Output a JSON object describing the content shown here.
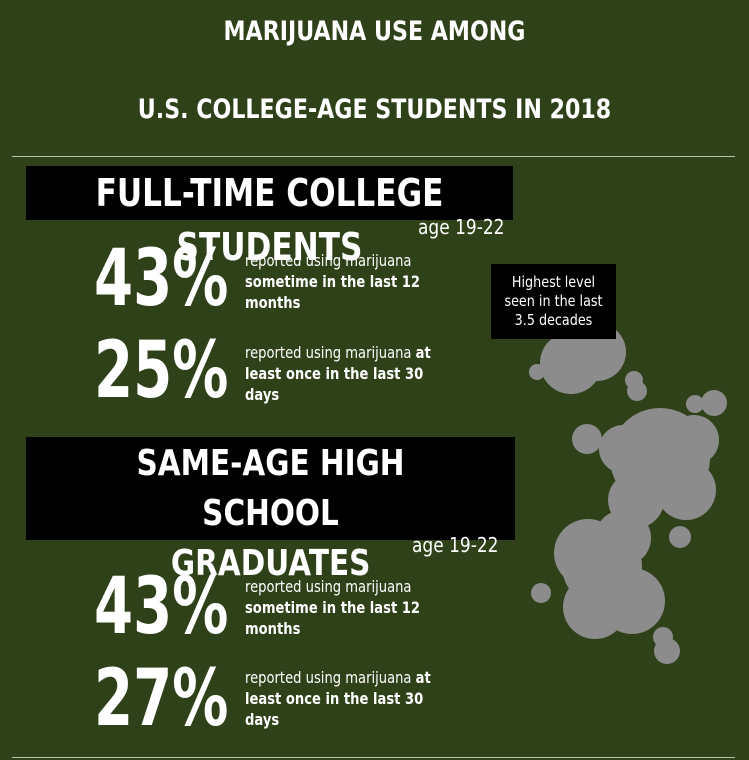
{
  "title_line1": "MARIJUANA USE AMONG",
  "title_line2": "U.S. COLLEGE-AGE STUDENTS IN 2018",
  "section1": {
    "heading": "FULL-TIME COLLEGE STUDENTS",
    "age": "age 19-22",
    "stat1": {
      "value": "43%",
      "text_plain": "reported using marijuana",
      "text_bold": "sometime in the last 12 months"
    },
    "stat2": {
      "value": "25%",
      "text_plain": "reported using marijuana",
      "text_bold": "at least once in the last 30 days"
    }
  },
  "section2": {
    "heading_line1": "SAME-AGE HIGH SCHOOL",
    "heading_line2": "GRADUATES",
    "age": "age 19-22",
    "stat1": {
      "value": "43%",
      "text_plain": "reported using marijuana",
      "text_bold": "sometime in the last 12 months"
    },
    "stat2": {
      "value": "27%",
      "text_plain": "reported using marijuana",
      "text_bold": "at least once in the last 30 days"
    }
  },
  "callout": "Highest level seen in the last 3.5 decades",
  "colors": {
    "background": "#2f4119",
    "smoke": "#8c8c8c",
    "box": "#000000",
    "text": "#ffffff"
  }
}
